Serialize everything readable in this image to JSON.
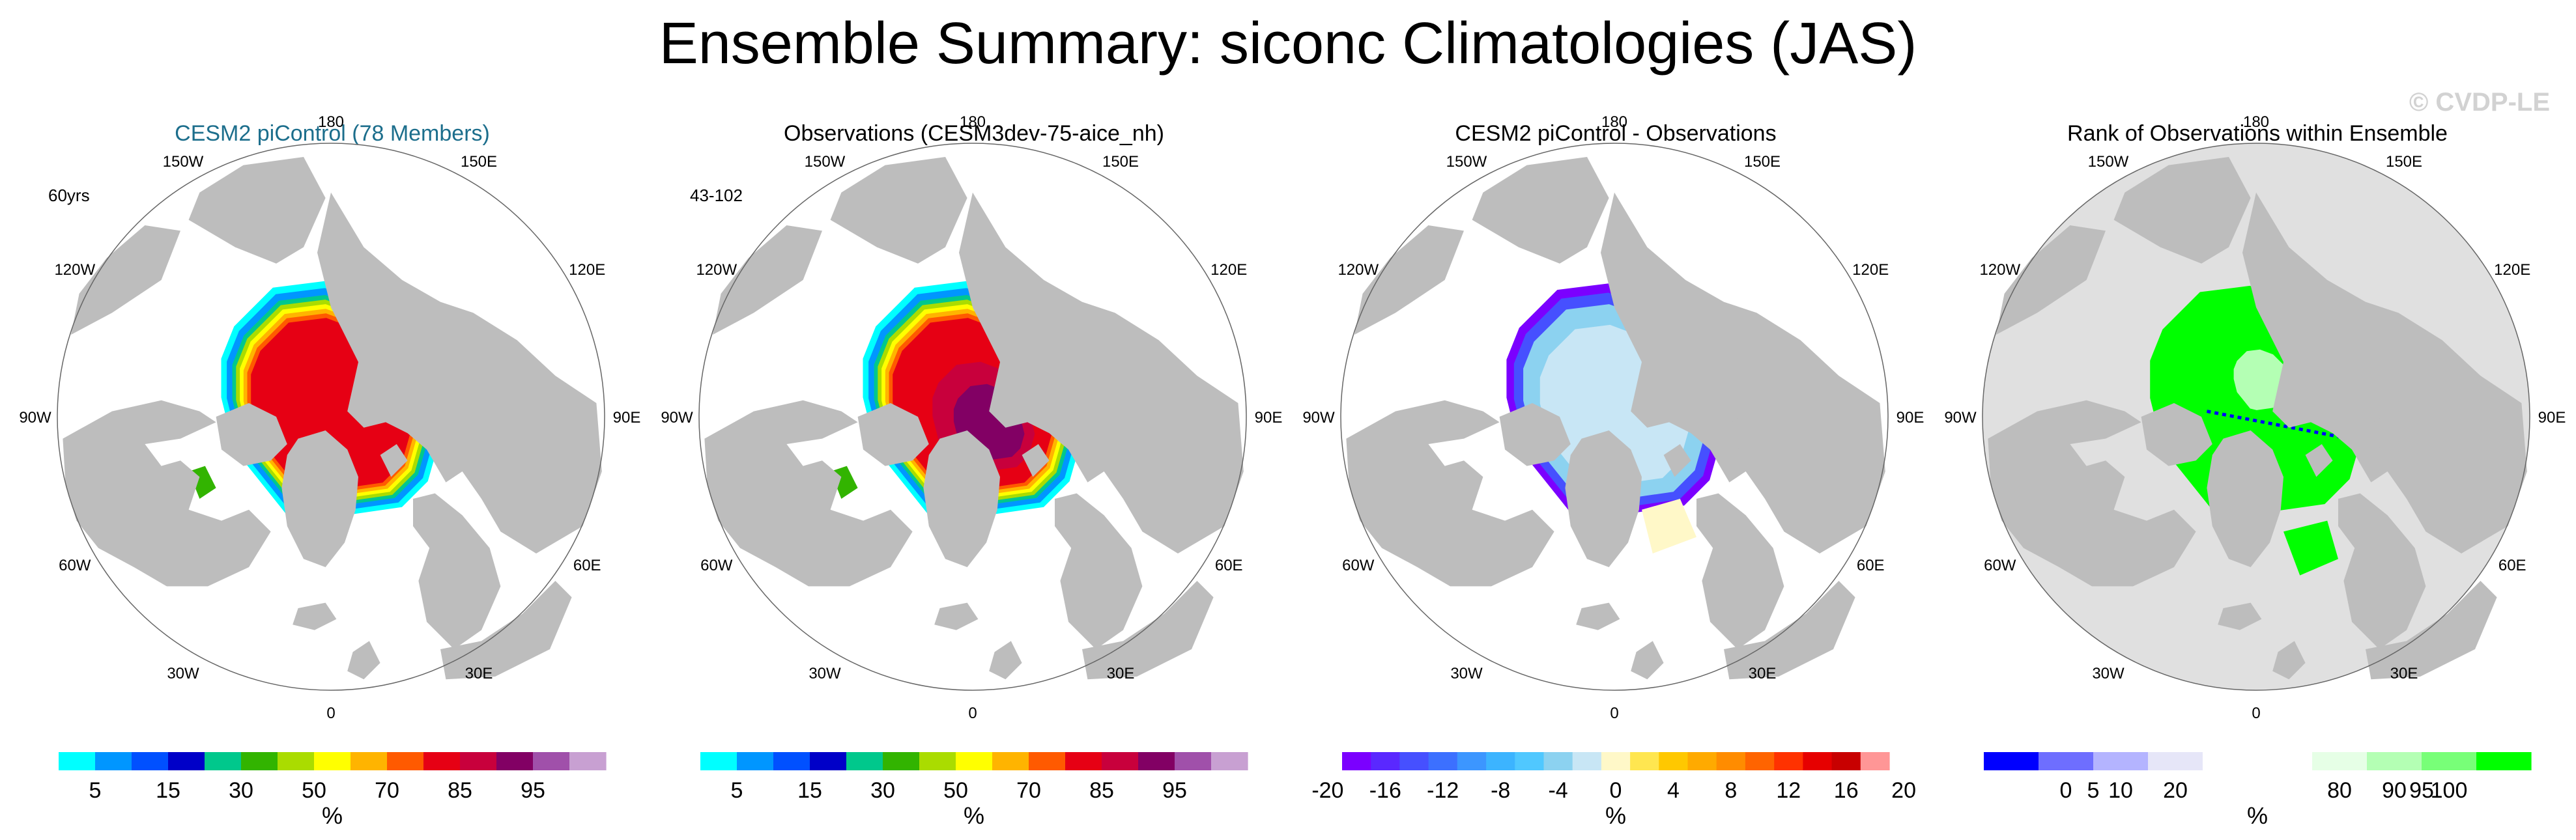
{
  "figure_title": "Ensemble Summary: siconc Climatologies (JAS)",
  "watermark": "© CVDP-LE",
  "lon_labels": [
    "180",
    "150E",
    "120E",
    "90E",
    "60E",
    "30E",
    "0",
    "30W",
    "60W",
    "90W",
    "120W",
    "150W"
  ],
  "colors": {
    "land": "#bdbdbd",
    "ocean": "#ffffff",
    "rank_ocean": "#e0e0e0",
    "seq_palette": [
      "#00ffff",
      "#0096ff",
      "#0050ff",
      "#0000c8",
      "#00c88c",
      "#32b400",
      "#aadc00",
      "#ffff00",
      "#ffb400",
      "#ff5a00",
      "#e60014",
      "#c8003c",
      "#820064",
      "#a050aa",
      "#c8a0d2"
    ],
    "diff_palette": [
      "#7b00ff",
      "#5a28ff",
      "#4650ff",
      "#3c70ff",
      "#3c96ff",
      "#3cb4ff",
      "#50c8ff",
      "#8cd2f0",
      "#c8e6f5",
      "#fff8c8",
      "#ffe650",
      "#ffc800",
      "#ffaa00",
      "#ff8c00",
      "#ff6400",
      "#ff3200",
      "#e60000",
      "#c80000",
      "#ff9696"
    ],
    "rank_palette": [
      "#0000ff",
      "#6e6eff",
      "#b4b4ff",
      "#e6e6f8",
      "#ffffff",
      "#ffffff",
      "#e6ffe6",
      "#b4ffb4",
      "#78ff78",
      "#00ff00"
    ]
  },
  "chart_data": [
    {
      "type": "heatmap",
      "projection": "north-polar-stereographic",
      "title": "CESM2 piControl (78 Members)",
      "corner_label": "60yrs",
      "colorbar_ticks": [
        "5",
        "15",
        "30",
        "50",
        "70",
        "85",
        "95"
      ],
      "colorbar_unit": "%",
      "colorbar_kind": "seq"
    },
    {
      "type": "heatmap",
      "projection": "north-polar-stereographic",
      "title": "Observations (CESM3dev-75-aice_nh)",
      "corner_label": "43-102",
      "colorbar_ticks": [
        "5",
        "15",
        "30",
        "50",
        "70",
        "85",
        "95"
      ],
      "colorbar_unit": "%",
      "colorbar_kind": "seq"
    },
    {
      "type": "heatmap",
      "projection": "north-polar-stereographic",
      "title": "CESM2 piControl - Observations",
      "corner_label": "",
      "colorbar_ticks": [
        "-20",
        "-16",
        "-12",
        "-8",
        "-4",
        "0",
        "4",
        "8",
        "12",
        "16",
        "20"
      ],
      "colorbar_unit": "%",
      "colorbar_kind": "diff"
    },
    {
      "type": "heatmap",
      "projection": "north-polar-stereographic",
      "title": "Rank of Observations within Ensemble",
      "corner_label": "",
      "colorbar_ticks": [
        "0",
        "5",
        "10",
        "20",
        "80",
        "90",
        "95",
        "100"
      ],
      "colorbar_unit": "%",
      "colorbar_kind": "rank"
    }
  ]
}
